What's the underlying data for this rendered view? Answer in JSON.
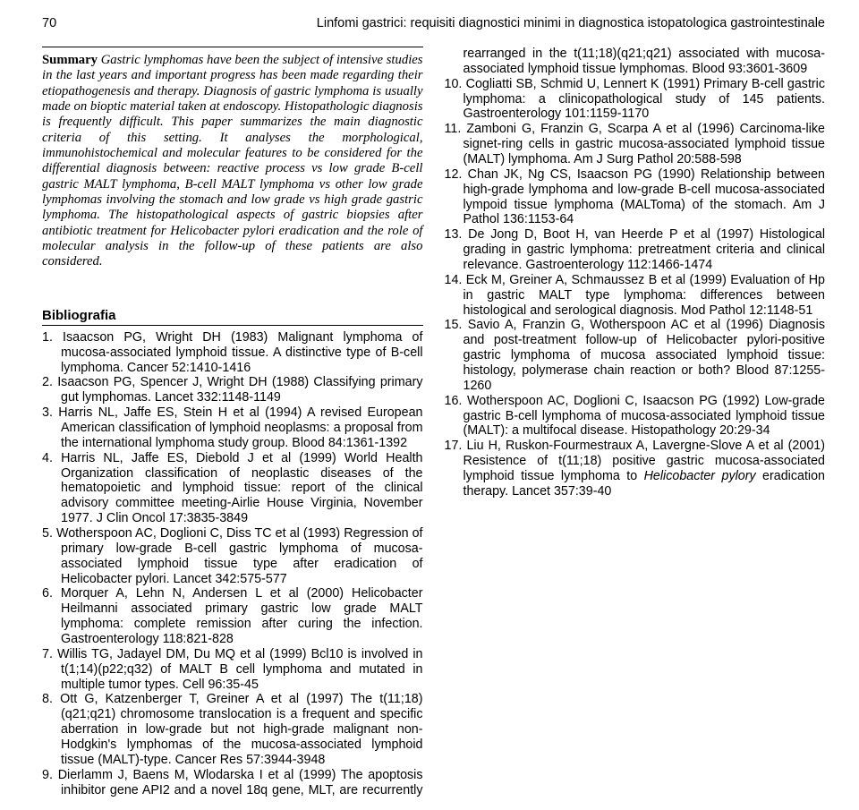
{
  "header": {
    "page_number": "70",
    "running_title": "Linfomi gastrici: requisiti diagnostici minimi in diagnostica istopatologica gastrointestinale"
  },
  "summary": {
    "label": "Summary",
    "body": "Gastric lymphomas have been the subject of intensive studies in the last years and important progress has been made regarding their etiopathogenesis and therapy. Diagnosis of gastric lymphoma is usually made on bioptic material taken at endoscopy. Histopathologic diagnosis is frequently difficult. This paper summarizes the main diagnostic criteria of this setting. It analyses the morphological, immunohistochemical and molecular features to be considered for the differential diagnosis between: reactive process vs low grade B-cell gastric MALT lymphoma, B-cell MALT lymphoma vs other low grade lymphomas involving the stomach and low grade vs high grade gastric lymphoma. The histopathological aspects of gastric biopsies after antibiotic treatment for Helicobacter pylori eradication and the role of molecular analysis in the follow-up of these patients are also considered."
  },
  "bibliography": {
    "heading": "Bibliografia",
    "refs": [
      "1. Isaacson PG, Wright DH (1983) Malignant lymphoma of mucosa-associated lymphoid tissue. A distinctive type of B-cell lymphoma. Cancer 52:1410-1416",
      "2. Isaacson PG, Spencer J, Wright DH (1988) Classifying primary gut lymphomas. Lancet 332:1148-1149",
      "3. Harris NL, Jaffe ES, Stein H et al (1994) A revised European American classification of lymphoid neoplasms: a proposal from the international lymphoma study group. Blood 84:1361-1392",
      "4. Harris NL, Jaffe ES, Diebold J et al (1999) World Health Organization classification of neoplastic diseases of the hematopoietic and lymphoid tissue: report of the clinical advisory committee meeting-Airlie House Virginia, November 1977. J Clin Oncol 17:3835-3849",
      "5. Wotherspoon AC, Doglioni C, Diss TC et al (1993) Regression of primary low-grade B-cell gastric lymphoma of mucosa-associated lymphoid tissue type after eradication of Helicobacter pylori. Lancet 342:575-577",
      "6. Morquer A, Lehn N, Andersen L et al (2000) Helicobacter Heilmanni associated primary gastric low grade MALT lymphoma: complete remission after curing the infection. Gastroenterology 118:821-828",
      "7. Willis TG, Jadayel DM, Du MQ et al (1999) Bcl10 is involved in t(1;14)(p22;q32) of MALT B cell lymphoma and mutated in multiple tumor types. Cell 96:35-45",
      "8. Ott G, Katzenberger T, Greiner A et al (1997) The t(11;18)(q21;q21) chromosome translocation is a frequent and specific aberration in low-grade but not high-grade malignant non-Hodgkin's lymphomas of the mucosa-associated lymphoid tissue (MALT)-type. Cancer Res 57:3944-3948",
      "9. Dierlamm J, Baens M, Wlodarska I et al (1999) The apoptosis inhibitor gene API2 and a novel 18q gene, MLT, are recurrently rearranged in the t(11;18)(q21;q21) associated with mucosa-associated lymphoid tissue lymphomas. Blood 93:3601-3609",
      "10. Cogliatti SB, Schmid U, Lennert K (1991) Primary B-cell gastric lymphoma: a clinicopathological study of 145 patients. Gastroenterology 101:1159-1170",
      "11. Zamboni G, Franzin G, Scarpa A et al (1996) Carcinoma-like signet-ring cells in gastric mucosa-associated lymphoid tissue (MALT) lymphoma. Am J Surg Pathol 20:588-598",
      "12. Chan JK, Ng CS, Isaacson PG (1990) Relationship between high-grade lymphoma and low-grade B-cell mucosa-associated lympoid tissue lymphoma (MALToma) of the stomach. Am J Pathol 136:1153-64",
      "13. De Jong D, Boot H, van Heerde P et al (1997) Histological grading in gastric lymphoma: pretreatment criteria and clinical relevance. Gastroenterology 112:1466-1474",
      "14. Eck M, Greiner A, Schmaussez B et al (1999) Evaluation of Hp in gastric MALT type lymphoma: differences between histological and serological diagnosis. Mod Pathol 12:1148-51",
      "15. Savio A, Franzin G, Wotherspoon AC et al (1996) Diagnosis and post-treatment follow-up of Helicobacter pylori-positive gastric lymphoma of mucosa associated lymphoid tissue: histology, polymerase chain reaction or both? Blood 87:1255-1260",
      "16. Wotherspoon AC, Doglioni C, Isaacson PG (1992) Low-grade gastric B-cell lymphoma of mucosa-associated lymphoid tissue (MALT): a multifocal disease. Histopathology 20:29-34"
    ],
    "ref17_pre": "17. Liu H, Ruskon-Fourmestraux A, Lavergne-Slove A et al (2001) Resistence of t(11;18) positive gastric mucosa-associated lymphoid tissue lymphoma to ",
    "ref17_it": "Helicobacter pylory",
    "ref17_post": " eradication therapy. Lancet 357:39-40"
  }
}
